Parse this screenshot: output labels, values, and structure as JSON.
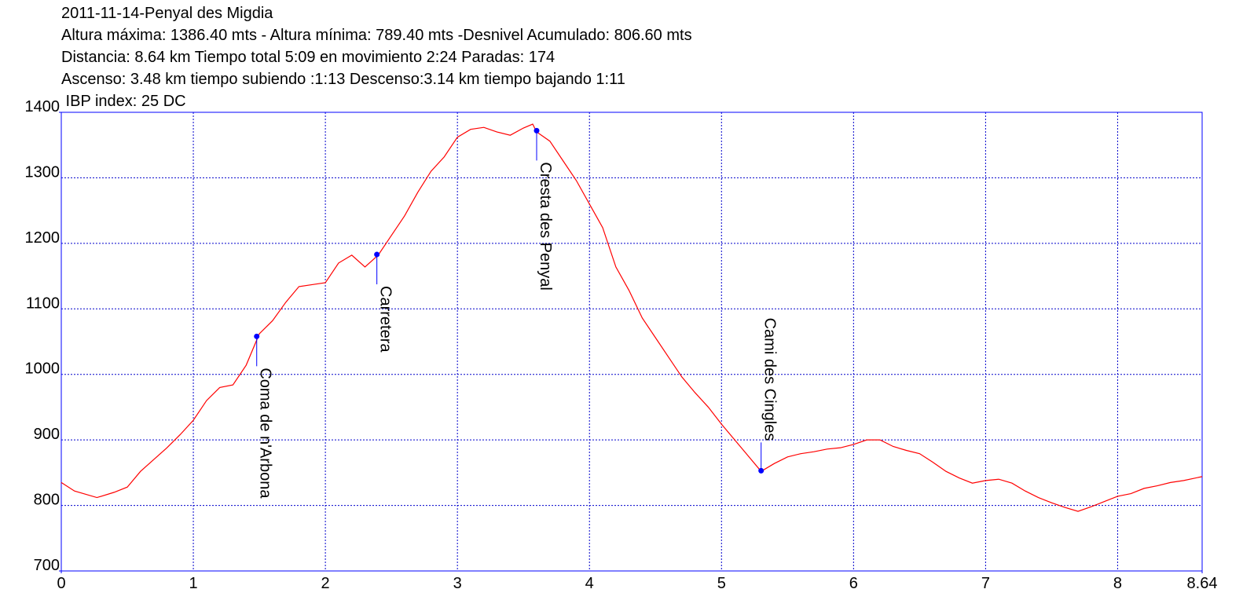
{
  "chart_data": {
    "type": "line",
    "title": "2011-11-14-Penyal des Migdia",
    "info_lines": [
      "Altura máxima: 1386.40 mts - Altura mínima: 789.40 mts -Desnivel Acumulado: 806.60 mts",
      "Distancia: 8.64 km  Tiempo total 5:09  en movimiento 2:24 Paradas: 174",
      "Ascenso: 3.48 km  tiempo subiendo :1:13  Descenso:3.14 km tiempo bajando 1:11",
      " IBP index: 25 DC"
    ],
    "x": [
      0,
      0.1,
      0.27,
      0.4,
      0.5,
      0.6,
      0.7,
      0.8,
      0.9,
      1.0,
      1.1,
      1.2,
      1.3,
      1.4,
      1.5,
      1.6,
      1.7,
      1.8,
      1.9,
      2.0,
      2.1,
      2.2,
      2.3,
      2.4,
      2.5,
      2.6,
      2.7,
      2.8,
      2.9,
      3.0,
      3.1,
      3.2,
      3.3,
      3.4,
      3.5,
      3.57,
      3.6,
      3.7,
      3.8,
      3.9,
      4.0,
      4.1,
      4.2,
      4.3,
      4.4,
      4.5,
      4.6,
      4.7,
      4.8,
      4.9,
      5.0,
      5.1,
      5.2,
      5.3,
      5.4,
      5.5,
      5.6,
      5.7,
      5.8,
      5.9,
      6.0,
      6.1,
      6.2,
      6.3,
      6.4,
      6.5,
      6.6,
      6.7,
      6.8,
      6.9,
      7.0,
      7.1,
      7.2,
      7.3,
      7.4,
      7.5,
      7.6,
      7.7,
      7.8,
      7.9,
      8.0,
      8.1,
      8.2,
      8.3,
      8.4,
      8.5,
      8.64
    ],
    "values": [
      835,
      822,
      812,
      820,
      828,
      852,
      870,
      888,
      908,
      930,
      960,
      980,
      984,
      1014,
      1062,
      1082,
      1110,
      1134,
      1137,
      1140,
      1170,
      1182,
      1164,
      1182,
      1212,
      1242,
      1278,
      1310,
      1332,
      1362,
      1374,
      1377,
      1370,
      1365,
      1376,
      1382,
      1370,
      1356,
      1326,
      1296,
      1260,
      1224,
      1164,
      1128,
      1086,
      1056,
      1026,
      996,
      972,
      950,
      924,
      900,
      876,
      852,
      864,
      874,
      879,
      882,
      886,
      888,
      893,
      900,
      900,
      890,
      884,
      879,
      866,
      852,
      842,
      834,
      838,
      840,
      834,
      822,
      812,
      804,
      797,
      791,
      798,
      806,
      814,
      818,
      826,
      830,
      835,
      838,
      844
    ],
    "color": "#ff0000",
    "waypoints": [
      {
        "label": "Coma de n'Arbona",
        "x": 1.48,
        "y": 1058,
        "label_side": "below"
      },
      {
        "label": "Carretera",
        "x": 2.39,
        "y": 1183,
        "label_side": "below"
      },
      {
        "label": "Cresta des Penyal",
        "x": 3.6,
        "y": 1372,
        "label_side": "below"
      },
      {
        "label": "Cami des Cingles",
        "x": 5.3,
        "y": 853,
        "label_side": "above"
      }
    ],
    "waypoint_color": "#0000ff",
    "xlim": [
      0,
      8.64
    ],
    "xticks": [
      0,
      1,
      2,
      3,
      4,
      5,
      6,
      7,
      8,
      8.64
    ],
    "ylim": [
      700,
      1400
    ],
    "yticks": [
      700,
      800,
      900,
      1000,
      1100,
      1200,
      1300,
      1400
    ],
    "grid": true,
    "grid_color": "#0000cc",
    "frame_color": "#0000ff"
  }
}
